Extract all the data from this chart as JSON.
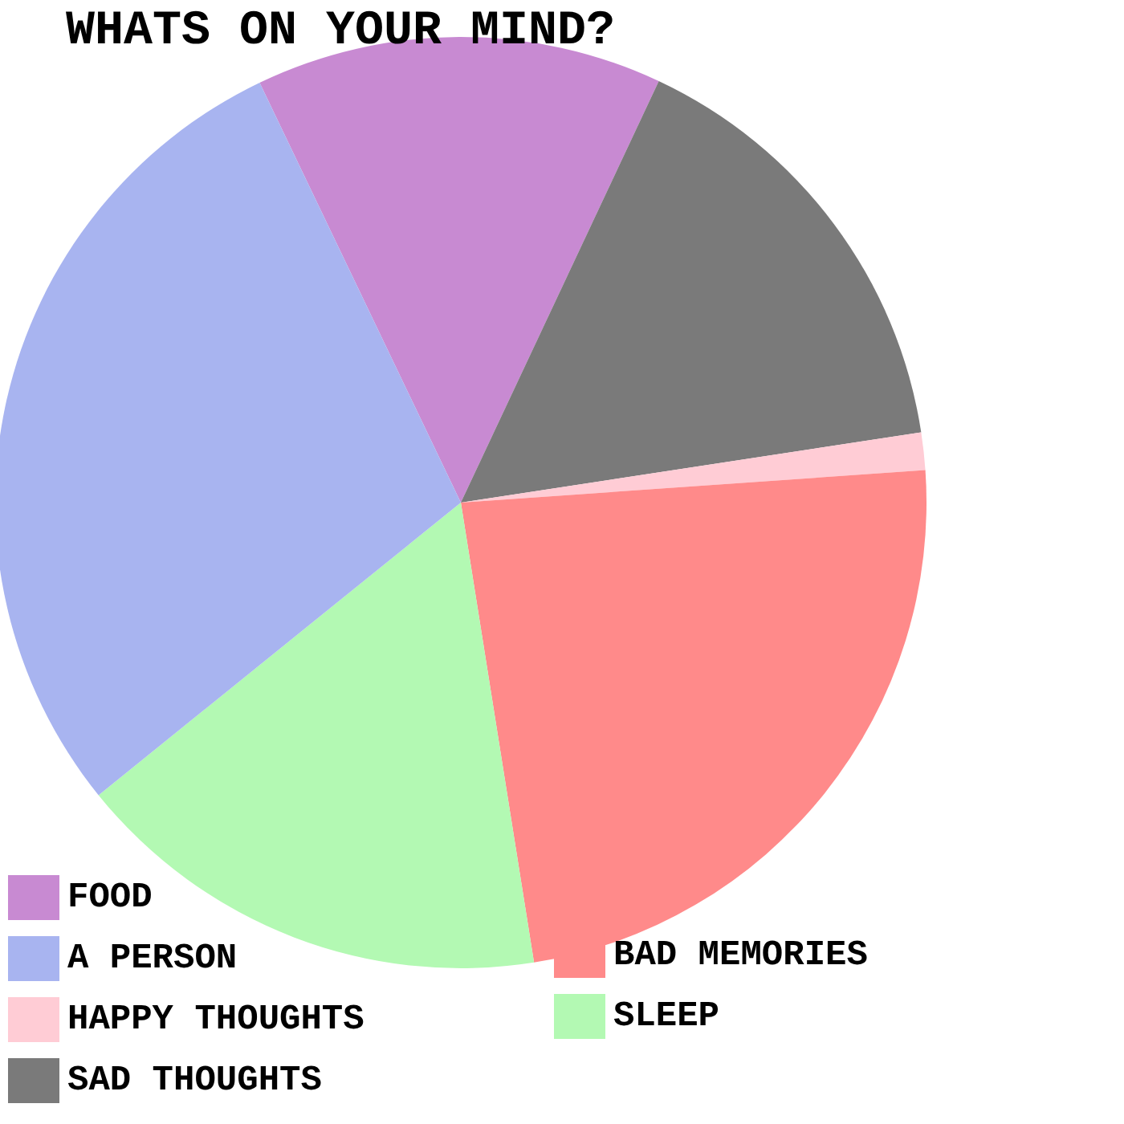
{
  "chart_data": {
    "type": "pie",
    "title": "WHATS ON YOUR MIND?",
    "categories": [
      "FOOD",
      "SAD THOUGHTS",
      "HAPPY THOUGHTS",
      "BAD MEMORIES",
      "SLEEP",
      "A PERSON"
    ],
    "values": [
      14.1,
      15.6,
      1.3,
      23.6,
      16.7,
      28.7
    ],
    "colors": [
      "#c88ad2",
      "#7a7a7a",
      "#ffccd5",
      "#ff8a8a",
      "#b3f9b3",
      "#a8b4f0"
    ],
    "legend": "bottom left"
  }
}
